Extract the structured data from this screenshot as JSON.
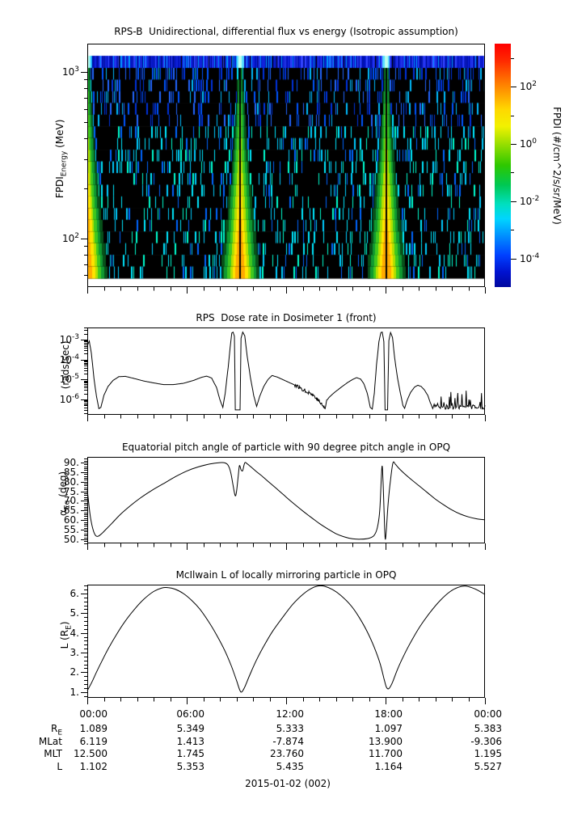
{
  "page": {
    "bg": "#ffffff",
    "fg": "#000000"
  },
  "xaxis": {
    "labels": [
      "00:00",
      "06:00",
      "12:00",
      "18:00",
      "00:00"
    ],
    "major_ticks_hours": [
      0,
      6,
      12,
      18,
      24
    ],
    "minor_step_hours": 1,
    "range_hours": [
      0,
      24
    ]
  },
  "chart_data": [
    {
      "type": "heatmap",
      "title": "RPS-B  Unidirectional, differential flux vs energy (Isotropic assumption)",
      "ylabel_parts": {
        "pre": "FPDI",
        "sub": "Energy",
        "post": " (MeV)"
      },
      "yscale": "log",
      "ylim_mev": [
        51,
        1480
      ],
      "yticks": [
        {
          "label": "10^3",
          "v": 1000
        },
        {
          "label": "10^2",
          "v": 100
        }
      ],
      "x_range_hours": [
        0,
        24
      ],
      "perigee_plume_centers_hours": [
        0.0,
        9.2,
        18.02
      ],
      "plume_half_width_hours": {
        "top": 0.14,
        "bottom": 1.16
      },
      "plume_colors": {
        "core_gap": "#000000",
        "inner_low_energy": "#ffaa00",
        "inner": "#ffe300",
        "mid": "#b2e000",
        "green": "#3fc81e",
        "outer": "#0f9930",
        "fringe": "#07511a"
      },
      "top_band": {
        "energy_note": "highest energy channel",
        "base_blues": [
          "#000f99",
          "#0011bb",
          "#1122dd",
          "#3344ff",
          "#0099ff"
        ],
        "plume_bright": "#bbffee",
        "plume_edge": "#55ddff",
        "gap_black": "#000000"
      },
      "scatter_dash_colors_upper": [
        "#0033dd",
        "#0055ff",
        "#2266ff",
        "#00bbff"
      ],
      "scatter_dash_colors_lower": [
        "#00e8ff",
        "#00ffd0",
        "#00ccff",
        "#0066ff"
      ],
      "background": "#000000",
      "n_energy_rows": 18,
      "seed": 20150102,
      "colorbar": {
        "label": "FPDI (#/cm^2/s/sr/MeV)",
        "log_top": 3.5,
        "log_bottom": -5,
        "ticks": [
          {
            "label": "10^2",
            "lv": 2
          },
          {
            "label": "10^0",
            "lv": 0
          },
          {
            "label": "10^-2",
            "lv": -2
          },
          {
            "label": "10^-4",
            "lv": -4
          }
        ],
        "minor_ticks_lv": [
          3,
          1,
          -1,
          -3
        ],
        "stops": [
          [
            0,
            "#ff0000"
          ],
          [
            0.07,
            "#ff2a00"
          ],
          [
            0.16,
            "#ff7a00"
          ],
          [
            0.27,
            "#ffd800"
          ],
          [
            0.34,
            "#f2f200"
          ],
          [
            0.42,
            "#8fdd00"
          ],
          [
            0.5,
            "#2ec800"
          ],
          [
            0.58,
            "#00c853"
          ],
          [
            0.66,
            "#00e0c0"
          ],
          [
            0.72,
            "#00d5ff"
          ],
          [
            0.79,
            "#0090ff"
          ],
          [
            0.87,
            "#0040ff"
          ],
          [
            0.94,
            "#0012cf"
          ],
          [
            1,
            "#00089e"
          ]
        ]
      }
    },
    {
      "type": "line",
      "title": "RPS  Dose rate in Dosimeter 1 (front)",
      "ylabel": "(rads/sec)",
      "yscale": "log",
      "ylim": [
        1.7e-07,
        0.0041
      ],
      "yticks": [
        {
          "label": "10^-3",
          "v": 0.001
        },
        {
          "label": "10^-4",
          "v": 0.0001
        },
        {
          "label": "10^-5",
          "v": 1e-05
        },
        {
          "label": "10^-6",
          "v": 1e-06
        }
      ],
      "points": [
        [
          0.0,
          0.0005
        ],
        [
          0.12,
          0.00085
        ],
        [
          0.25,
          0.0002
        ],
        [
          0.4,
          1.2e-05
        ],
        [
          0.55,
          1.5e-06
        ],
        [
          0.7,
          3.5e-07
        ],
        [
          0.82,
          4e-07
        ],
        [
          1.0,
          1.6e-06
        ],
        [
          1.25,
          4.5e-06
        ],
        [
          1.55,
          9e-06
        ],
        [
          1.9,
          1.4e-05
        ],
        [
          2.3,
          1.45e-05
        ],
        [
          2.8,
          1.15e-05
        ],
        [
          3.4,
          8.5e-06
        ],
        [
          4.0,
          6.8e-06
        ],
        [
          4.6,
          5.6e-06
        ],
        [
          5.2,
          5.6e-06
        ],
        [
          5.8,
          6.5e-06
        ],
        [
          6.4,
          9e-06
        ],
        [
          6.9,
          1.3e-05
        ],
        [
          7.2,
          1.5e-05
        ],
        [
          7.5,
          1.2e-05
        ],
        [
          7.8,
          4e-06
        ],
        [
          8.0,
          1e-06
        ],
        [
          8.18,
          4e-07
        ],
        [
          8.32,
          2e-06
        ],
        [
          8.5,
          4e-05
        ],
        [
          8.62,
          0.0004
        ],
        [
          8.72,
          0.0022
        ],
        [
          8.8,
          0.0024
        ],
        [
          8.88,
          0.0015
        ],
        [
          8.93,
          3e-07
        ],
        [
          9.22,
          3e-07
        ],
        [
          9.28,
          0.0012
        ],
        [
          9.38,
          0.0024
        ],
        [
          9.5,
          0.0016
        ],
        [
          9.65,
          0.00015
        ],
        [
          9.85,
          1.2e-05
        ],
        [
          10.05,
          1.5e-06
        ],
        [
          10.22,
          4.5e-07
        ],
        [
          10.4,
          1.4e-06
        ],
        [
          10.65,
          4.5e-06
        ],
        [
          10.9,
          1e-05
        ],
        [
          11.15,
          1.6e-05
        ],
        [
          11.45,
          1.35e-05
        ],
        [
          11.8,
          1e-05
        ],
        [
          12.2,
          7e-06
        ],
        [
          12.6,
          5e-06
        ],
        [
          13.0,
          3.2e-06
        ],
        [
          13.4,
          2.2e-06
        ],
        [
          13.7,
          1.5e-06
        ],
        [
          14.0,
          8e-07
        ],
        [
          14.2,
          5e-07
        ],
        [
          14.35,
          3.6e-07
        ],
        [
          14.45,
          9e-07
        ],
        [
          14.6,
          1.3e-06
        ],
        [
          14.9,
          2.2e-06
        ],
        [
          15.3,
          4e-06
        ],
        [
          15.7,
          7e-06
        ],
        [
          16.0,
          1e-05
        ],
        [
          16.25,
          1.25e-05
        ],
        [
          16.5,
          1.05e-05
        ],
        [
          16.7,
          6e-06
        ],
        [
          16.9,
          2e-06
        ],
        [
          17.08,
          4e-07
        ],
        [
          17.2,
          3.3e-07
        ],
        [
          17.32,
          2e-06
        ],
        [
          17.45,
          5e-05
        ],
        [
          17.6,
          0.0008
        ],
        [
          17.72,
          0.0023
        ],
        [
          17.8,
          0.0024
        ],
        [
          17.9,
          0.0008
        ],
        [
          17.97,
          3e-07
        ],
        [
          18.12,
          3e-07
        ],
        [
          18.2,
          0.0009
        ],
        [
          18.3,
          0.0023
        ],
        [
          18.42,
          0.0013
        ],
        [
          18.55,
          0.00012
        ],
        [
          18.72,
          1.2e-05
        ],
        [
          18.9,
          2e-06
        ],
        [
          19.05,
          5e-07
        ],
        [
          19.15,
          3.6e-07
        ],
        [
          19.3,
          9e-07
        ],
        [
          19.5,
          2.2e-06
        ],
        [
          19.75,
          4.2e-06
        ],
        [
          19.95,
          5.2e-06
        ],
        [
          20.15,
          4.5e-06
        ],
        [
          20.35,
          3e-06
        ],
        [
          20.55,
          1.6e-06
        ],
        [
          20.7,
          7e-07
        ],
        [
          20.85,
          3.5e-07
        ]
      ],
      "jitter_ranges": [
        [
          12.5,
          14.45
        ]
      ],
      "jitter_amp_decades": 0.09,
      "noise_tail": {
        "t_start": 20.85,
        "t_end": 24,
        "v_floor": 3.3e-07,
        "v_max": 2.9e-06
      }
    },
    {
      "type": "line",
      "title": "Equatorial pitch angle of particle with 90 degree pitch angle in OPQ",
      "ylabel_parts": {
        "pre": "α",
        "sub": "Eq",
        "post": " (deg)"
      },
      "yscale": "linear",
      "ylim": [
        47.9,
        92.9
      ],
      "yticks": [
        {
          "label": "90.",
          "v": 90
        },
        {
          "label": "85.",
          "v": 85
        },
        {
          "label": "80.",
          "v": 80
        },
        {
          "label": "75.",
          "v": 75
        },
        {
          "label": "70.",
          "v": 70
        },
        {
          "label": "65.",
          "v": 65
        },
        {
          "label": "60.",
          "v": 60
        },
        {
          "label": "55.",
          "v": 55
        },
        {
          "label": "50.",
          "v": 50
        }
      ],
      "minor_step": 1,
      "points": [
        [
          0,
          75.5
        ],
        [
          0.1,
          68
        ],
        [
          0.2,
          61
        ],
        [
          0.35,
          55
        ],
        [
          0.5,
          52
        ],
        [
          0.65,
          51.6
        ],
        [
          0.85,
          52.8
        ],
        [
          1.1,
          55
        ],
        [
          1.5,
          58.5
        ],
        [
          2.0,
          63
        ],
        [
          2.6,
          67.5
        ],
        [
          3.2,
          71.5
        ],
        [
          3.9,
          75.5
        ],
        [
          4.6,
          79
        ],
        [
          5.3,
          82.5
        ],
        [
          6.0,
          85.5
        ],
        [
          6.7,
          87.7
        ],
        [
          7.4,
          89.2
        ],
        [
          8.0,
          89.9
        ],
        [
          8.3,
          89.8
        ],
        [
          8.5,
          88.5
        ],
        [
          8.65,
          85
        ],
        [
          8.8,
          78
        ],
        [
          8.92,
          72.8
        ],
        [
          9.0,
          74.5
        ],
        [
          9.1,
          82
        ],
        [
          9.18,
          88.3
        ],
        [
          9.28,
          86.2
        ],
        [
          9.38,
          85.8
        ],
        [
          9.5,
          89.8
        ],
        [
          9.65,
          89.3
        ],
        [
          9.9,
          87.5
        ],
        [
          10.2,
          85.3
        ],
        [
          10.6,
          82.5
        ],
        [
          11.0,
          79.5
        ],
        [
          11.5,
          75.8
        ],
        [
          12.0,
          72
        ],
        [
          12.5,
          68.3
        ],
        [
          13.0,
          64.8
        ],
        [
          13.5,
          61.5
        ],
        [
          14.0,
          58.3
        ],
        [
          14.5,
          55.5
        ],
        [
          15.0,
          53
        ],
        [
          15.5,
          51.3
        ],
        [
          16.0,
          50.3
        ],
        [
          16.5,
          50.1
        ],
        [
          17.0,
          50.6
        ],
        [
          17.3,
          52
        ],
        [
          17.5,
          56
        ],
        [
          17.65,
          65
        ],
        [
          17.78,
          87.5
        ],
        [
          17.85,
          80
        ],
        [
          17.92,
          62
        ],
        [
          17.98,
          50.3
        ],
        [
          18.05,
          55
        ],
        [
          18.15,
          68
        ],
        [
          18.3,
          81
        ],
        [
          18.45,
          89.8
        ],
        [
          18.6,
          89
        ],
        [
          18.8,
          87
        ],
        [
          19.1,
          84.5
        ],
        [
          19.5,
          81.5
        ],
        [
          20.0,
          78
        ],
        [
          20.5,
          74.5
        ],
        [
          21.0,
          71
        ],
        [
          21.5,
          68
        ],
        [
          22.0,
          65.3
        ],
        [
          22.5,
          63.2
        ],
        [
          23.0,
          61.7
        ],
        [
          23.5,
          60.7
        ],
        [
          24,
          60.2
        ]
      ]
    },
    {
      "type": "line",
      "title": "McIlwain L of locally mirroring particle in OPQ",
      "ylabel_parts": {
        "pre": "L (R",
        "sub": "E",
        "post": ")"
      },
      "yscale": "linear",
      "ylim": [
        0.7,
        6.45
      ],
      "yticks": [
        {
          "label": "6.",
          "v": 6
        },
        {
          "label": "5.",
          "v": 5
        },
        {
          "label": "4.",
          "v": 4
        },
        {
          "label": "3.",
          "v": 3
        },
        {
          "label": "2.",
          "v": 2
        },
        {
          "label": "1.",
          "v": 1
        }
      ],
      "minor_step": 0.2,
      "points": [
        [
          0,
          1.07
        ],
        [
          0.25,
          1.45
        ],
        [
          0.55,
          2.0
        ],
        [
          0.9,
          2.6
        ],
        [
          1.3,
          3.25
        ],
        [
          1.75,
          3.9
        ],
        [
          2.25,
          4.55
        ],
        [
          2.8,
          5.15
        ],
        [
          3.4,
          5.7
        ],
        [
          4.0,
          6.1
        ],
        [
          4.5,
          6.28
        ],
        [
          4.9,
          6.3
        ],
        [
          5.3,
          6.22
        ],
        [
          5.8,
          6.0
        ],
        [
          6.3,
          5.65
        ],
        [
          6.8,
          5.2
        ],
        [
          7.3,
          4.6
        ],
        [
          7.8,
          3.9
        ],
        [
          8.3,
          3.1
        ],
        [
          8.7,
          2.3
        ],
        [
          9.0,
          1.6
        ],
        [
          9.2,
          1.1
        ],
        [
          9.32,
          1.0
        ],
        [
          9.5,
          1.25
        ],
        [
          9.8,
          1.85
        ],
        [
          10.2,
          2.6
        ],
        [
          10.7,
          3.4
        ],
        [
          11.2,
          4.1
        ],
        [
          11.8,
          4.8
        ],
        [
          12.4,
          5.45
        ],
        [
          13.0,
          5.95
        ],
        [
          13.5,
          6.25
        ],
        [
          13.9,
          6.38
        ],
        [
          14.3,
          6.37
        ],
        [
          14.8,
          6.2
        ],
        [
          15.3,
          5.9
        ],
        [
          15.9,
          5.4
        ],
        [
          16.4,
          4.8
        ],
        [
          16.9,
          4.05
        ],
        [
          17.3,
          3.3
        ],
        [
          17.65,
          2.5
        ],
        [
          17.9,
          1.7
        ],
        [
          18.05,
          1.25
        ],
        [
          18.2,
          1.17
        ],
        [
          18.4,
          1.45
        ],
        [
          18.7,
          2.1
        ],
        [
          19.1,
          2.85
        ],
        [
          19.6,
          3.65
        ],
        [
          20.1,
          4.35
        ],
        [
          20.7,
          5.05
        ],
        [
          21.3,
          5.65
        ],
        [
          21.9,
          6.1
        ],
        [
          22.4,
          6.32
        ],
        [
          22.8,
          6.38
        ],
        [
          23.2,
          6.3
        ],
        [
          23.6,
          6.15
        ],
        [
          24,
          5.95
        ]
      ]
    }
  ],
  "table": {
    "time_row": [
      "00:00",
      "06:00",
      "12:00",
      "18:00",
      "00:00"
    ],
    "rows": [
      {
        "label_pre": "R",
        "label_sub": "E",
        "values": [
          "1.089",
          "5.349",
          "5.333",
          "1.097",
          "5.383"
        ]
      },
      {
        "label_pre": "MLat",
        "label_sub": "",
        "values": [
          "6.119",
          "1.413",
          "-7.874",
          "13.900",
          "-9.306"
        ]
      },
      {
        "label_pre": "MLT",
        "label_sub": "",
        "values": [
          "12.500",
          "1.745",
          "23.760",
          "11.700",
          "1.195"
        ]
      },
      {
        "label_pre": "L",
        "label_sub": "",
        "values": [
          "1.102",
          "5.353",
          "5.435",
          "1.164",
          "5.527"
        ]
      }
    ]
  },
  "footer": {
    "date": "2015-01-02 (002)"
  }
}
